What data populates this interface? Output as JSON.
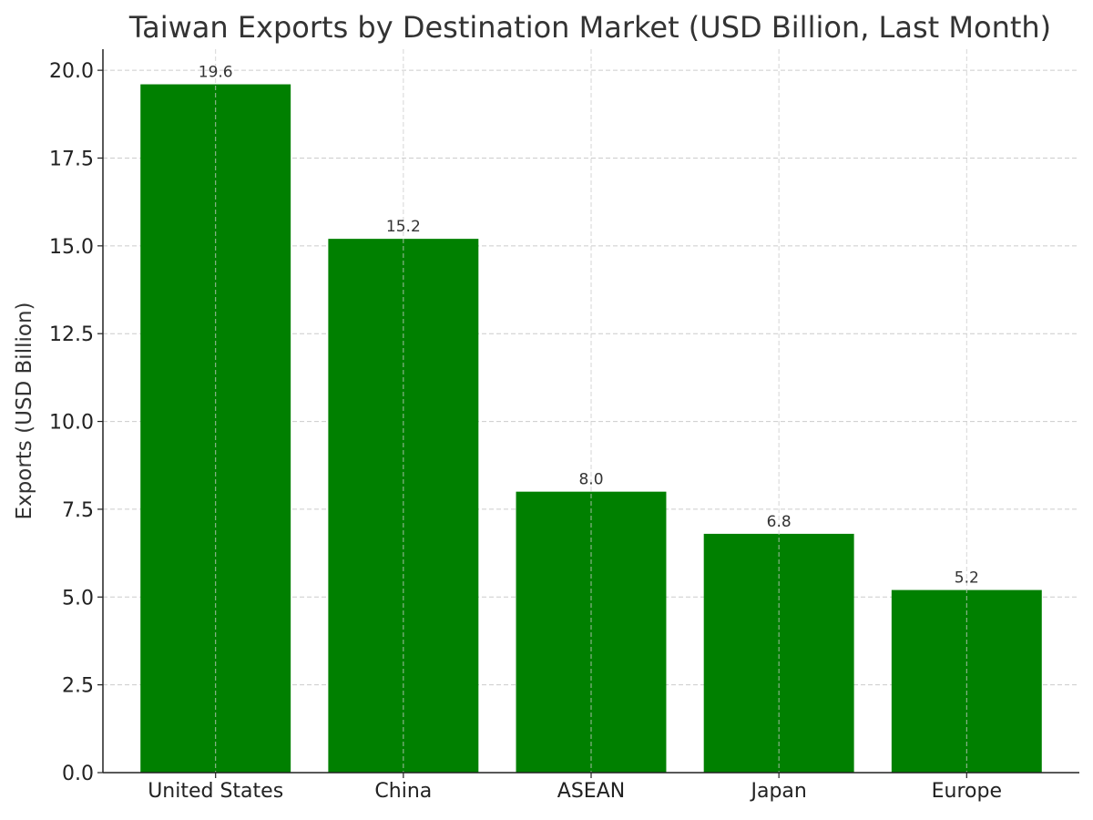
{
  "chart_data": {
    "type": "bar",
    "title": "Taiwan Exports by Destination Market (USD Billion, Last Month)",
    "xlabel": "",
    "ylabel": "Exports (USD Billion)",
    "categories": [
      "United States",
      "China",
      "ASEAN",
      "Japan",
      "Europe"
    ],
    "values": [
      19.6,
      15.2,
      8.0,
      6.8,
      5.2
    ],
    "data_labels": [
      "19.6",
      "15.2",
      "8.0",
      "6.8",
      "5.2"
    ],
    "ylim": [
      0,
      20.6
    ],
    "yticks": [
      0,
      2.5,
      5,
      7.5,
      10,
      12.5,
      15,
      17.5,
      20
    ],
    "ytick_labels": [
      "0.0",
      "2.5",
      "5.0",
      "7.5",
      "10.0",
      "12.5",
      "15.0",
      "17.5",
      "20.0"
    ],
    "grid": true,
    "bar_color": "#008000"
  }
}
